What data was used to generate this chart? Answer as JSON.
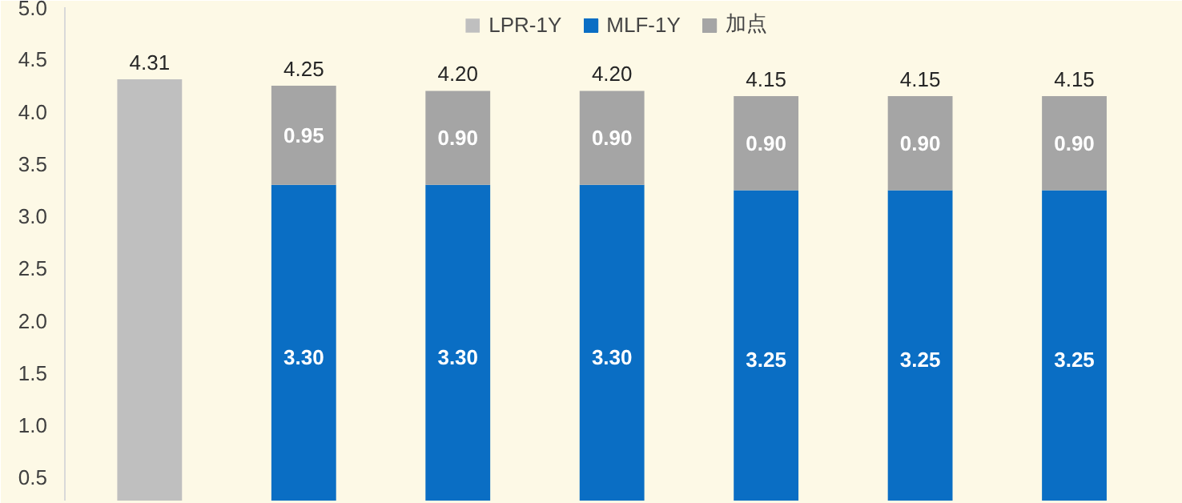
{
  "chart_data": {
    "type": "bar",
    "stacked": true,
    "categories": [
      null,
      null,
      null,
      null,
      null,
      null,
      null
    ],
    "series": [
      {
        "name": "LPR-1Y",
        "color": "#bfbfbf",
        "values": [
          4.31,
          null,
          null,
          null,
          null,
          null,
          null
        ]
      },
      {
        "name": "MLF-1Y",
        "color": "#0a6ec4",
        "values": [
          null,
          3.3,
          3.3,
          3.3,
          3.25,
          3.25,
          3.25
        ],
        "value_labels": [
          null,
          "3.30",
          "3.30",
          "3.30",
          "3.25",
          "3.25",
          "3.25"
        ]
      },
      {
        "name": "加点",
        "color": "#a5a5a5",
        "values": [
          null,
          0.95,
          0.9,
          0.9,
          0.9,
          0.9,
          0.9
        ],
        "value_labels": [
          null,
          "0.95",
          "0.90",
          "0.90",
          "0.90",
          "0.90",
          "0.90"
        ]
      }
    ],
    "totals": [
      "4.31",
      "4.25",
      "4.20",
      "4.20",
      "4.15",
      "4.15",
      "4.15"
    ],
    "ylim": [
      0.28,
      5.0
    ],
    "yticks": [
      {
        "value": 0.5,
        "label": "0.5"
      },
      {
        "value": 1.0,
        "label": "1.0"
      },
      {
        "value": 1.5,
        "label": "1.5"
      },
      {
        "value": 2.0,
        "label": "2.0"
      },
      {
        "value": 2.5,
        "label": "2.5"
      },
      {
        "value": 3.0,
        "label": "3.0"
      },
      {
        "value": 3.5,
        "label": "3.5"
      },
      {
        "value": 4.0,
        "label": "4.0"
      },
      {
        "value": 4.5,
        "label": "4.5"
      },
      {
        "value": 5.0,
        "label": "5.0"
      }
    ],
    "grid": false,
    "legend": "top"
  }
}
